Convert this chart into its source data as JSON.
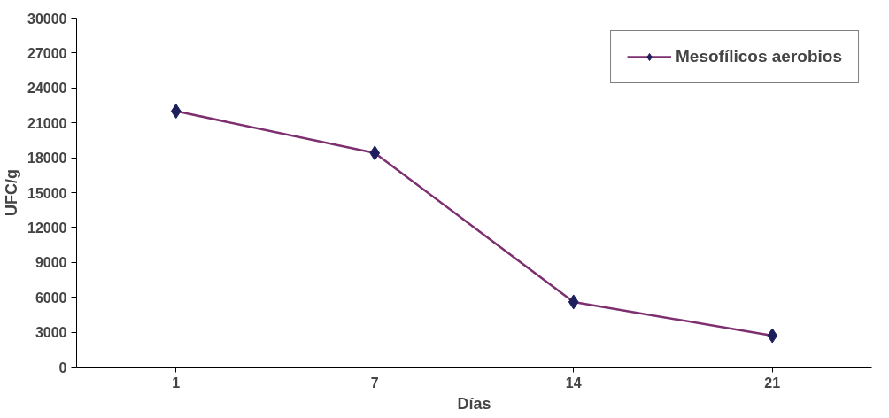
{
  "chart_data": {
    "type": "line",
    "xlabel": "Días",
    "ylabel": "UFC/g",
    "categories": [
      "1",
      "7",
      "14",
      "21"
    ],
    "series": [
      {
        "name": "Mesofílicos aerobios",
        "color": "#7d2f70",
        "values": [
          22000,
          18400,
          5600,
          2700
        ]
      }
    ],
    "ylim": [
      0,
      30000
    ],
    "yticks": [
      0,
      3000,
      6000,
      9000,
      12000,
      15000,
      18000,
      21000,
      24000,
      27000,
      30000
    ],
    "marker": "diamond",
    "legend": "top right",
    "grid": false
  }
}
